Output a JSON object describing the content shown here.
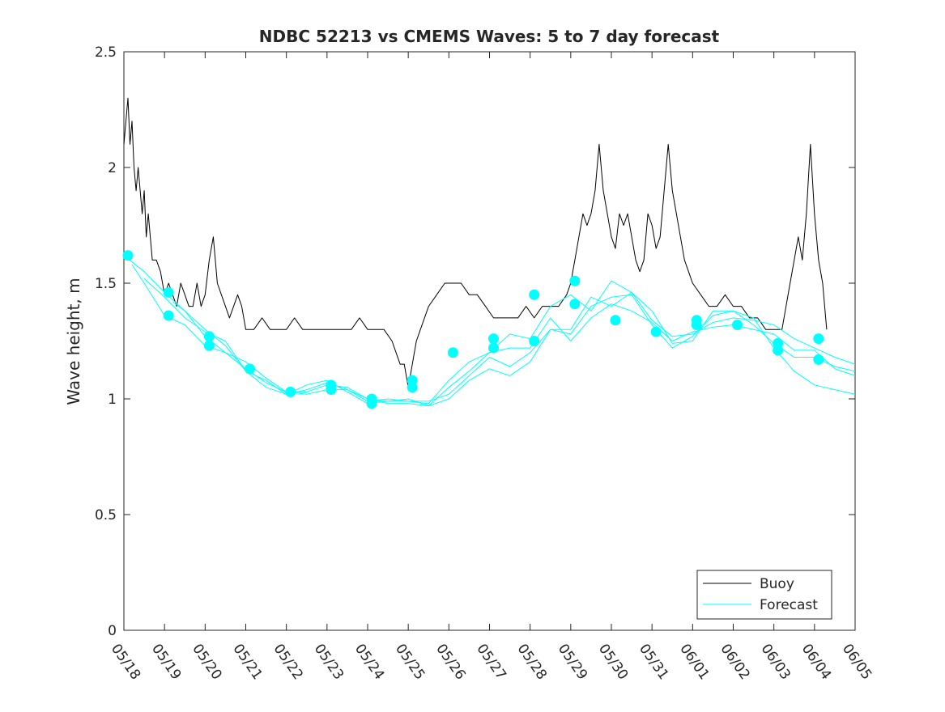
{
  "chart_data": {
    "type": "line",
    "title": "NDBC 52213 vs CMEMS Waves: 5 to 7 day forecast",
    "xlabel": "",
    "ylabel": "Wave height, m",
    "ylim": [
      0,
      2.5
    ],
    "xlim": [
      "05/18",
      "06/05"
    ],
    "x_tick_labels": [
      "05/18",
      "05/19",
      "05/20",
      "05/21",
      "05/22",
      "05/23",
      "05/24",
      "05/25",
      "05/26",
      "05/27",
      "05/28",
      "05/29",
      "05/30",
      "05/31",
      "06/01",
      "06/02",
      "06/03",
      "06/04",
      "06/05"
    ],
    "y_ticks": [
      0,
      0.5,
      1,
      1.5,
      2,
      2.5
    ],
    "y_tick_labels": [
      "0",
      "0.5",
      "1",
      "1.5",
      "2",
      "2.5"
    ],
    "grid": false,
    "legend": {
      "placement": "bottom-right",
      "entries": [
        "Buoy",
        "Forecast"
      ]
    },
    "colors": {
      "buoy": "#000000",
      "forecast": "#00FFFF"
    },
    "series": [
      {
        "name": "Buoy",
        "x": [
          0.0,
          0.1,
          0.15,
          0.2,
          0.25,
          0.3,
          0.35,
          0.4,
          0.45,
          0.5,
          0.55,
          0.6,
          0.65,
          0.7,
          0.8,
          0.9,
          1.0,
          1.1,
          1.2,
          1.3,
          1.4,
          1.5,
          1.6,
          1.7,
          1.8,
          1.9,
          2.0,
          2.1,
          2.2,
          2.3,
          2.4,
          2.5,
          2.6,
          2.7,
          2.8,
          2.9,
          3.0,
          3.2,
          3.4,
          3.6,
          3.8,
          4.0,
          4.2,
          4.4,
          4.6,
          4.8,
          5.0,
          5.2,
          5.4,
          5.6,
          5.8,
          6.0,
          6.2,
          6.4,
          6.6,
          6.7,
          6.8,
          6.9,
          7.0,
          7.1,
          7.2,
          7.3,
          7.5,
          7.7,
          7.9,
          8.1,
          8.3,
          8.5,
          8.7,
          8.9,
          9.1,
          9.3,
          9.5,
          9.7,
          9.9,
          10.1,
          10.3,
          10.5,
          10.7,
          10.9,
          11.0,
          11.1,
          11.2,
          11.3,
          11.4,
          11.5,
          11.6,
          11.7,
          11.8,
          11.9,
          12.0,
          12.1,
          12.2,
          12.3,
          12.4,
          12.5,
          12.6,
          12.7,
          12.8,
          12.9,
          13.0,
          13.1,
          13.2,
          13.3,
          13.4,
          13.5,
          13.6,
          13.7,
          13.8,
          13.9,
          14.0,
          14.2,
          14.4,
          14.6,
          14.8,
          15.0,
          15.2,
          15.4,
          15.6,
          15.8,
          16.0,
          16.2,
          16.4,
          16.5,
          16.6,
          16.7,
          16.8,
          16.9,
          17.0,
          17.1,
          17.2,
          17.3
        ],
        "values": [
          2.1,
          2.3,
          2.1,
          2.2,
          2.0,
          1.9,
          2.0,
          1.9,
          1.8,
          1.9,
          1.7,
          1.8,
          1.7,
          1.6,
          1.6,
          1.55,
          1.45,
          1.5,
          1.45,
          1.4,
          1.5,
          1.45,
          1.4,
          1.4,
          1.5,
          1.4,
          1.45,
          1.6,
          1.7,
          1.5,
          1.45,
          1.4,
          1.35,
          1.4,
          1.45,
          1.4,
          1.3,
          1.3,
          1.35,
          1.3,
          1.3,
          1.3,
          1.35,
          1.3,
          1.3,
          1.3,
          1.3,
          1.3,
          1.3,
          1.3,
          1.35,
          1.3,
          1.3,
          1.3,
          1.25,
          1.2,
          1.15,
          1.15,
          1.05,
          1.15,
          1.25,
          1.3,
          1.4,
          1.45,
          1.5,
          1.5,
          1.5,
          1.45,
          1.45,
          1.4,
          1.35,
          1.35,
          1.35,
          1.35,
          1.4,
          1.35,
          1.4,
          1.4,
          1.4,
          1.45,
          1.5,
          1.6,
          1.7,
          1.8,
          1.75,
          1.8,
          1.9,
          2.1,
          1.9,
          1.8,
          1.7,
          1.65,
          1.8,
          1.75,
          1.8,
          1.7,
          1.6,
          1.55,
          1.6,
          1.8,
          1.75,
          1.65,
          1.7,
          1.9,
          2.1,
          1.9,
          1.8,
          1.7,
          1.6,
          1.55,
          1.5,
          1.45,
          1.4,
          1.4,
          1.45,
          1.4,
          1.4,
          1.35,
          1.35,
          1.3,
          1.3,
          1.3,
          1.5,
          1.6,
          1.7,
          1.6,
          1.8,
          2.1,
          1.8,
          1.6,
          1.5,
          1.3
        ]
      },
      {
        "name": "Forecast",
        "x": [
          0,
          0.5,
          1,
          1.5,
          2,
          2.5,
          3,
          3.5,
          4,
          4.5,
          5,
          5.5,
          6,
          6.5,
          7,
          7.5,
          8,
          8.5,
          9,
          9.5,
          10,
          10.5,
          11,
          11.5,
          12,
          12.5,
          13,
          13.5,
          14,
          14.5,
          15,
          15.5,
          16,
          16.5,
          17,
          17.5,
          18
        ],
        "values": [
          1.62,
          1.55,
          1.46,
          1.38,
          1.27,
          1.2,
          1.13,
          1.07,
          1.03,
          1.02,
          1.04,
          1.04,
          1.0,
          0.99,
          0.99,
          0.98,
          1.08,
          1.16,
          1.2,
          1.28,
          1.26,
          1.4,
          1.45,
          1.38,
          1.51,
          1.46,
          1.34,
          1.27,
          1.28,
          1.33,
          1.35,
          1.34,
          1.32,
          1.26,
          1.22,
          1.18,
          1.15
        ]
      },
      {
        "name": "",
        "x": [
          0.2,
          0.5,
          1,
          1.5,
          2,
          2.5,
          3,
          3.5,
          4,
          4.5,
          5,
          5.5,
          6,
          6.5,
          7,
          7.5,
          8,
          8.5,
          9,
          9.5,
          10,
          10.5,
          11,
          11.5,
          12,
          12.5,
          13,
          13.5,
          14,
          14.5,
          15,
          15.5,
          16,
          16.5,
          17,
          17.5,
          18
        ],
        "values": [
          1.58,
          1.5,
          1.36,
          1.32,
          1.23,
          1.2,
          1.16,
          1.09,
          1.03,
          1.03,
          1.06,
          1.05,
          1.0,
          0.98,
          0.98,
          0.97,
          1.05,
          1.12,
          1.2,
          1.22,
          1.22,
          1.35,
          1.25,
          1.35,
          1.41,
          1.38,
          1.33,
          1.25,
          1.29,
          1.31,
          1.32,
          1.3,
          1.28,
          1.21,
          1.21,
          1.13,
          1.1
        ]
      },
      {
        "name": "",
        "x": [
          0.5,
          1,
          1.5,
          2,
          2.5,
          3,
          3.5,
          4,
          4.5,
          5,
          5.5,
          6,
          6.5,
          7,
          7.5,
          8,
          8.5,
          9,
          9.5,
          10,
          10.5,
          11,
          11.5,
          12,
          12.5,
          13,
          13.5,
          14,
          14.5,
          15,
          15.5,
          16,
          16.5,
          17,
          17.5,
          18
        ],
        "values": [
          1.52,
          1.44,
          1.35,
          1.29,
          1.25,
          1.12,
          1.08,
          1.02,
          1.04,
          1.07,
          1.04,
          0.99,
          1.0,
          0.99,
          0.99,
          1.02,
          1.1,
          1.18,
          1.14,
          1.2,
          1.3,
          1.28,
          1.4,
          1.44,
          1.45,
          1.32,
          1.22,
          1.27,
          1.36,
          1.38,
          1.32,
          1.24,
          1.18,
          1.18,
          1.14,
          1.12
        ]
      },
      {
        "name": "",
        "x": [
          1.2,
          1.5,
          2,
          2.5,
          3,
          3.5,
          4,
          4.5,
          5,
          5.5,
          6,
          6.5,
          7,
          7.5,
          8,
          8.5,
          9,
          9.5,
          10,
          10.5,
          11,
          11.5,
          12,
          12.5,
          13,
          13.5,
          14,
          14.5,
          15,
          15.5,
          16,
          16.5,
          17,
          17.5,
          18
        ],
        "values": [
          1.42,
          1.38,
          1.3,
          1.23,
          1.12,
          1.05,
          1.02,
          1.06,
          1.08,
          1.03,
          0.98,
          0.99,
          1.0,
          0.97,
          1.0,
          1.08,
          1.13,
          1.1,
          1.16,
          1.3,
          1.3,
          1.44,
          1.4,
          1.46,
          1.38,
          1.24,
          1.25,
          1.38,
          1.38,
          1.35,
          1.22,
          1.12,
          1.06,
          1.04,
          1.02
        ]
      }
    ],
    "forecast_markers": {
      "x": [
        0.1,
        1.1,
        1.1,
        2.1,
        2.1,
        3.1,
        4.1,
        5.1,
        5.1,
        6.1,
        6.1,
        7.1,
        7.1,
        8.1,
        9.1,
        9.1,
        10.1,
        10.1,
        11.1,
        11.1,
        12.1,
        13.1,
        14.1,
        14.1,
        15.1,
        16.1,
        16.1,
        17.1,
        17.1
      ],
      "values": [
        1.62,
        1.46,
        1.36,
        1.27,
        1.23,
        1.13,
        1.03,
        1.06,
        1.04,
        1.0,
        0.98,
        1.08,
        1.05,
        1.2,
        1.26,
        1.22,
        1.45,
        1.25,
        1.51,
        1.41,
        1.34,
        1.29,
        1.34,
        1.32,
        1.32,
        1.24,
        1.21,
        1.26,
        1.17
      ]
    }
  }
}
